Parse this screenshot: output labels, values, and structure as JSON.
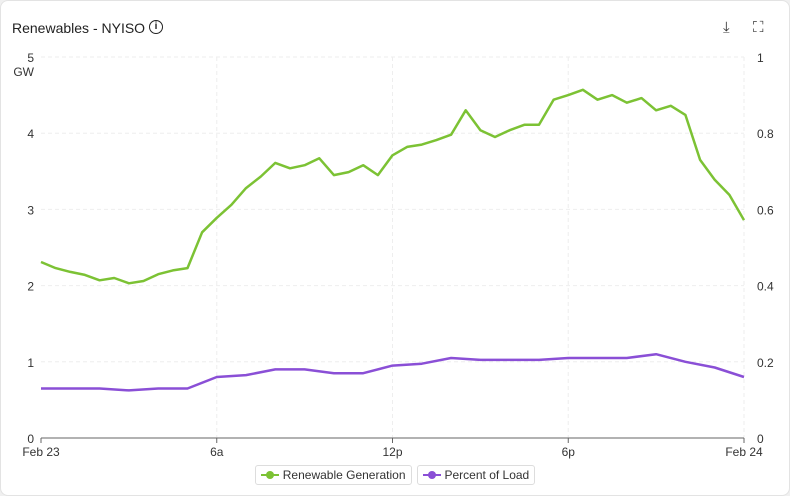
{
  "header": {
    "title": "Renewables - NYISO",
    "info_icon": "info-icon",
    "download_icon": "download-icon",
    "fullscreen_icon": "fullscreen-icon"
  },
  "chart_data": {
    "type": "line",
    "title": "Renewables - NYISO",
    "ylabel": "GW",
    "ylim": [
      0,
      5
    ],
    "y2lim": [
      0,
      1
    ],
    "yticks": [
      "0",
      "1",
      "2",
      "3",
      "4",
      "5"
    ],
    "y2ticks": [
      "0",
      "0.2",
      "0.4",
      "0.6",
      "0.8",
      "1"
    ],
    "xticks": [
      {
        "h": 0,
        "label": "Feb 23"
      },
      {
        "h": 6,
        "label": "6a"
      },
      {
        "h": 12,
        "label": "12p"
      },
      {
        "h": 18,
        "label": "6p"
      },
      {
        "h": 24,
        "label": "Feb 24"
      }
    ],
    "grid": true,
    "legend": "bottom",
    "series": [
      {
        "name": "Renewable Generation",
        "axis": "left",
        "color": "#7cc234",
        "step_hours": 0.5,
        "values": [
          2.31,
          2.23,
          2.18,
          2.14,
          2.07,
          2.1,
          2.03,
          2.06,
          2.15,
          2.2,
          2.23,
          2.7,
          2.89,
          3.06,
          3.28,
          3.43,
          3.61,
          3.54,
          3.58,
          3.67,
          3.45,
          3.49,
          3.58,
          3.45,
          3.71,
          3.82,
          3.85,
          3.91,
          3.98,
          4.3,
          4.04,
          3.95,
          4.04,
          4.11,
          4.11,
          4.44,
          4.5,
          4.57,
          4.44,
          4.5,
          4.4,
          4.46,
          4.3,
          4.36,
          4.24,
          3.65,
          3.39,
          3.19,
          2.86
        ]
      },
      {
        "name": "Percent of Load",
        "axis": "right",
        "color": "#8a4fd6",
        "step_hours": 1,
        "values": [
          0.13,
          0.13,
          0.13,
          0.125,
          0.13,
          0.13,
          0.16,
          0.165,
          0.18,
          0.18,
          0.17,
          0.17,
          0.19,
          0.195,
          0.21,
          0.205,
          0.205,
          0.205,
          0.21,
          0.21,
          0.21,
          0.22,
          0.2,
          0.185,
          0.16
        ]
      }
    ]
  }
}
